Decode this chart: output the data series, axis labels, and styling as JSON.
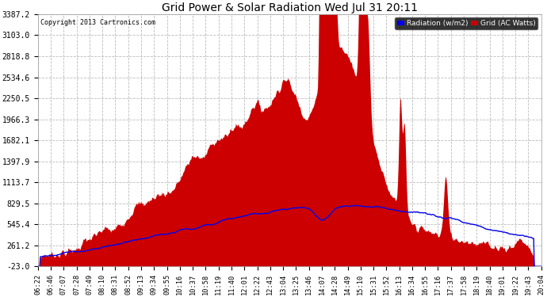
{
  "title": "Grid Power & Solar Radiation Wed Jul 31 20:11",
  "copyright": "Copyright 2013 Cartronics.com",
  "yticks": [
    -23.0,
    261.2,
    545.4,
    829.5,
    1113.7,
    1397.9,
    1682.1,
    1966.3,
    2250.5,
    2534.6,
    2818.8,
    3103.0,
    3387.2
  ],
  "ymin": -23.0,
  "ymax": 3387.2,
  "background_color": "#ffffff",
  "plot_bg_color": "#ffffff",
  "grid_color": "#bbbbbb",
  "red_color": "#cc0000",
  "blue_color": "#0000ee",
  "legend_radiation_label": "Radiation (w/m2)",
  "legend_grid_label": "Grid (AC Watts)",
  "x_labels": [
    "06:22",
    "06:46",
    "07:07",
    "07:28",
    "07:49",
    "08:10",
    "08:31",
    "08:52",
    "09:13",
    "09:34",
    "09:55",
    "10:16",
    "10:37",
    "10:58",
    "11:19",
    "11:40",
    "12:01",
    "12:22",
    "12:43",
    "13:04",
    "13:25",
    "13:46",
    "14:07",
    "14:28",
    "14:49",
    "15:10",
    "15:31",
    "15:52",
    "16:13",
    "16:34",
    "16:55",
    "17:16",
    "17:37",
    "17:58",
    "18:19",
    "18:40",
    "19:01",
    "19:22",
    "19:43",
    "20:04"
  ]
}
